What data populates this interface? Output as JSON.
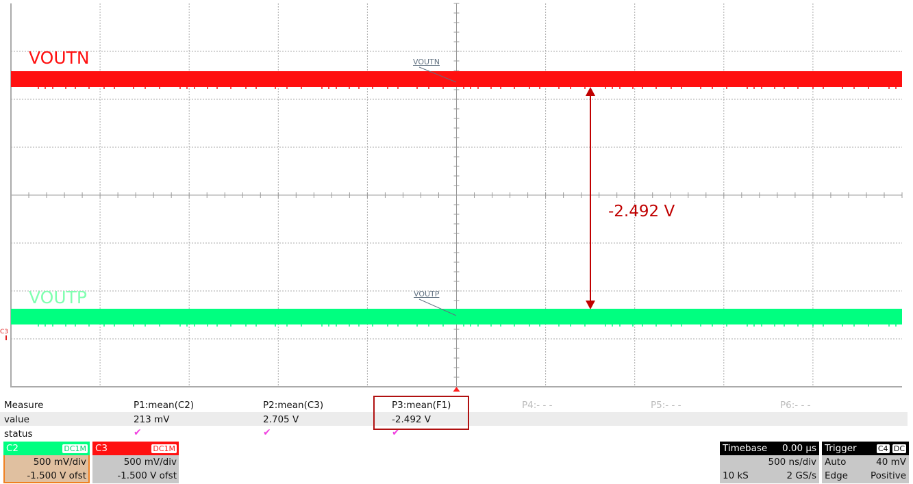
{
  "traces": [
    {
      "label": "VOUTN",
      "channel": "C3",
      "color": "#ff1010"
    },
    {
      "label": "VOUTP",
      "channel": "C2",
      "color": "#00ff80"
    }
  ],
  "marker_c3": "C3",
  "delta_label": "-2.492 V",
  "delta_color": "#c00000",
  "measure": {
    "row_labels": [
      "Measure",
      "value",
      "status"
    ],
    "params": [
      {
        "name": "P1:mean(C2)",
        "value": "213 mV",
        "status": "✔"
      },
      {
        "name": "P2:mean(C3)",
        "value": "2.705 V",
        "status": "✔"
      },
      {
        "name": "P3:mean(F1)",
        "value": "-2.492 V",
        "status": "✔"
      },
      {
        "name": "P4:- - -",
        "value": "",
        "status": ""
      },
      {
        "name": "P5:- - -",
        "value": "",
        "status": ""
      },
      {
        "name": "P6:- - -",
        "value": "",
        "status": ""
      }
    ]
  },
  "channels": [
    {
      "name": "C2",
      "coupling": "DC1M",
      "scale": "500 mV/div",
      "offset": "-1.500 V ofst",
      "color": "#00ff80"
    },
    {
      "name": "C3",
      "coupling": "DC1M",
      "scale": "500 mV/div",
      "offset": "-1.500 V ofst",
      "color": "#ff1010"
    }
  ],
  "timebase": {
    "title": "Timebase",
    "delay": "0.00 µs",
    "scale": "500 ns/div",
    "samples": "10 kS",
    "rate": "2 GS/s"
  },
  "trigger": {
    "title": "Trigger",
    "source": "C4",
    "coupling": "DC",
    "mode": "Auto",
    "level": "40 mV",
    "type": "Edge",
    "slope": "Positive"
  }
}
